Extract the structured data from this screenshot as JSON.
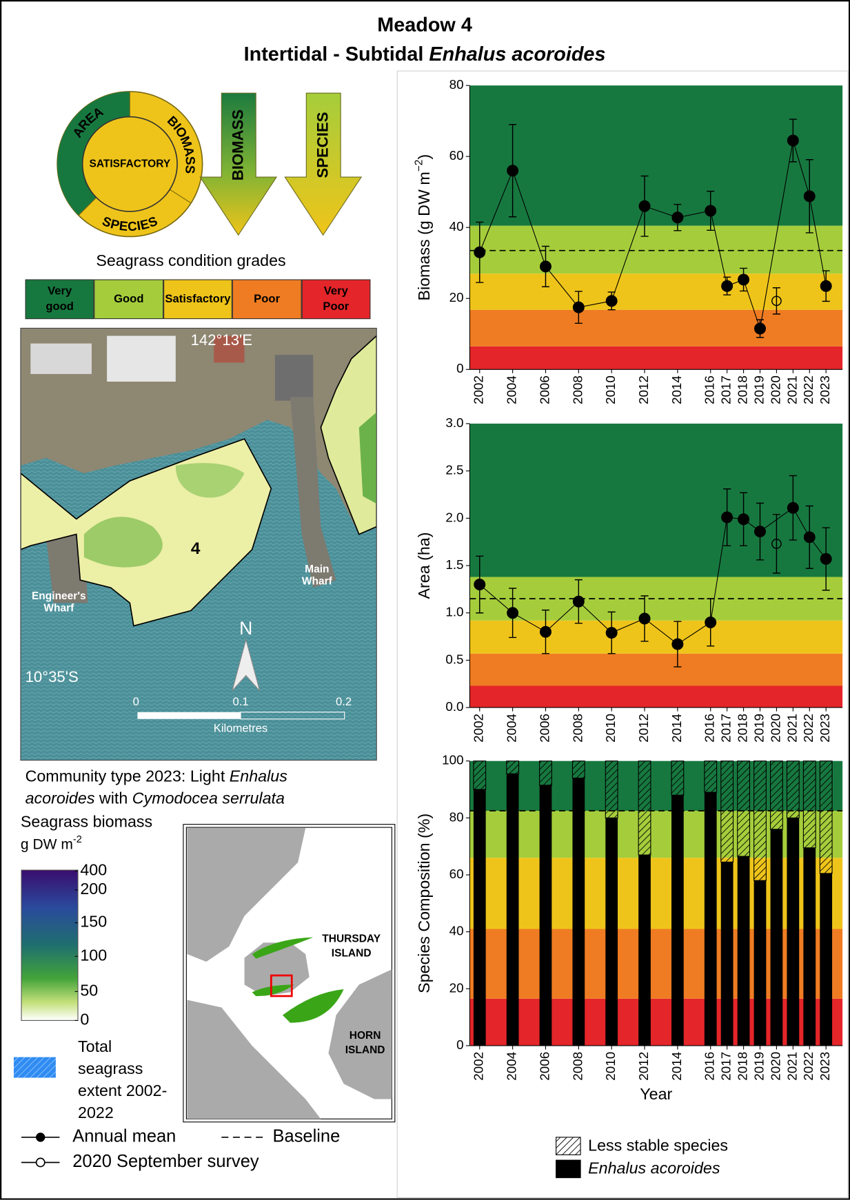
{
  "header": {
    "title": "Meadow 4",
    "subtitle": "Intertidal - Subtidal ",
    "subtitle_species": "Enhalus acoroides"
  },
  "report_card": {
    "center": "SATISFACTORY",
    "ring": [
      "AREA",
      "BIOMASS",
      "SPECIES"
    ],
    "arrows": [
      "BIOMASS",
      "SPECIES"
    ]
  },
  "grades": {
    "title": "Seagrass condition grades",
    "items": [
      {
        "label": "Very good",
        "color": "#17783f"
      },
      {
        "label": "Good",
        "color": "#a5cd3b"
      },
      {
        "label": "Satisfactory",
        "color": "#efc41a"
      },
      {
        "label": "Poor",
        "color": "#ef7c22"
      },
      {
        "label": "Very Poor",
        "color": "#e42529"
      }
    ]
  },
  "map": {
    "longitude": "142°13'E",
    "latitude": "10°35'S",
    "meadow": "4",
    "places": [
      "Engineer's Wharf",
      "Main Wharf"
    ],
    "north": "N",
    "scale": [
      "0",
      "0.1",
      "0.2"
    ],
    "scale_unit": "Kilometres"
  },
  "community": {
    "text": "Community type 2023: Light ",
    "species1": "Enhalus acoroides",
    "joiner": " with ",
    "species2": "Cymodocea serrulata"
  },
  "biomass_legend": {
    "title": "Seagrass biomass",
    "unit": "g DW m",
    "unit_sup": "-2",
    "ticks": [
      "400",
      "200",
      "150",
      "100",
      "50",
      "0"
    ],
    "extent": "Total seagrass extent 2002-2022"
  },
  "symbol_legend": {
    "annual_mean": "Annual mean",
    "baseline": "Baseline",
    "september": "2020 September survey"
  },
  "inset": {
    "labels": [
      "THURSDAY ISLAND",
      "HORN ISLAND"
    ]
  },
  "chart_data": [
    {
      "type": "line",
      "ylabel": "Biomass (g DW m",
      "ylabel_sup": "−2",
      "ylabel_end": ")",
      "xlim": [
        2001.4,
        2024.0
      ],
      "xticks": [
        2002,
        2004,
        2006,
        2008,
        2010,
        2012,
        2014,
        2016,
        2017,
        2018,
        2019,
        2020,
        2021,
        2022,
        2023
      ],
      "ylim": [
        0,
        80
      ],
      "yticks": [
        0,
        20,
        40,
        60,
        80
      ],
      "baseline": 33.5,
      "bands": [
        {
          "from": 0,
          "to": 6.5,
          "color": "#e42529"
        },
        {
          "from": 6.5,
          "to": 16.8,
          "color": "#ef7c22"
        },
        {
          "from": 16.8,
          "to": 27,
          "color": "#efc41a"
        },
        {
          "from": 27,
          "to": 40.5,
          "color": "#a5cd3b"
        },
        {
          "from": 40.5,
          "to": 80,
          "color": "#17783f"
        }
      ],
      "series": [
        {
          "color": "#000000",
          "marker": "filled",
          "line": true,
          "x": [
            2002,
            2004,
            2006,
            2008,
            2010,
            2012,
            2014,
            2016,
            2017,
            2018,
            2019,
            2021,
            2022,
            2023
          ],
          "values": [
            33,
            56,
            29,
            17.5,
            19.3,
            46,
            42.8,
            44.7,
            23.5,
            25.3,
            11.5,
            64.5,
            48.8,
            23.5
          ],
          "errors": [
            8.5,
            13,
            5.7,
            4.5,
            2.5,
            8.5,
            3.7,
            5.5,
            2.5,
            3.2,
            2.5,
            6,
            10.3,
            4.3
          ]
        },
        {
          "color": "#000000",
          "marker": "open",
          "line": false,
          "x": [
            2020
          ],
          "values": [
            19.3
          ],
          "errors": [
            3.7
          ]
        }
      ]
    },
    {
      "type": "line",
      "ylabel": "Area (ha)",
      "xlim": [
        2001.4,
        2024.0
      ],
      "xticks": [
        2002,
        2004,
        2006,
        2008,
        2010,
        2012,
        2014,
        2016,
        2017,
        2018,
        2019,
        2020,
        2021,
        2022,
        2023
      ],
      "ylim": [
        0,
        3
      ],
      "yticks": [
        {
          "value": 0,
          "label": "0.0"
        },
        0.5,
        {
          "value": 1,
          "label": "1.0"
        },
        1.5,
        {
          "value": 2,
          "label": "2.0"
        },
        2.5,
        {
          "value": 3,
          "label": "3.0"
        }
      ],
      "baseline": 1.15,
      "bands": [
        {
          "from": 0,
          "to": 0.23,
          "color": "#e42529"
        },
        {
          "from": 0.23,
          "to": 0.57,
          "color": "#ef7c22"
        },
        {
          "from": 0.57,
          "to": 0.92,
          "color": "#efc41a"
        },
        {
          "from": 0.92,
          "to": 1.38,
          "color": "#a5cd3b"
        },
        {
          "from": 1.38,
          "to": 3,
          "color": "#17783f"
        }
      ],
      "series": [
        {
          "color": "#000000",
          "marker": "filled",
          "line": true,
          "x": [
            2002,
            2004,
            2006,
            2008,
            2010,
            2012,
            2014,
            2016,
            2017,
            2018,
            2019,
            2021,
            2022,
            2023
          ],
          "values": [
            1.3,
            1.0,
            0.8,
            1.12,
            0.79,
            0.94,
            0.67,
            0.9,
            2.01,
            1.99,
            1.86,
            2.11,
            1.8,
            1.57
          ],
          "errors": [
            0.3,
            0.26,
            0.23,
            0.23,
            0.22,
            0.24,
            0.24,
            0.25,
            0.3,
            0.28,
            0.3,
            0.34,
            0.33,
            0.33
          ]
        },
        {
          "color": "#000000",
          "marker": "open",
          "line": false,
          "x": [
            2020
          ],
          "values": [
            1.73
          ],
          "errors": [
            0.31
          ]
        }
      ]
    },
    {
      "type": "bar",
      "stacked": true,
      "ylabel": "Species Composition (%)",
      "xlabel": "Year",
      "xlim": [
        2001.4,
        2024.0
      ],
      "xticks": [
        2002,
        2004,
        2006,
        2008,
        2010,
        2012,
        2014,
        2016,
        2017,
        2018,
        2019,
        2020,
        2021,
        2022,
        2023
      ],
      "x": [
        2002,
        2004,
        2006,
        2008,
        2010,
        2012,
        2014,
        2016,
        2017,
        2018,
        2019,
        2020,
        2021,
        2022,
        2023
      ],
      "ylim": [
        0,
        100
      ],
      "yticks": [
        0,
        20,
        40,
        60,
        80,
        100
      ],
      "baseline": 82.5,
      "bands": [
        {
          "from": 0,
          "to": 16.5,
          "color": "#e42529"
        },
        {
          "from": 16.5,
          "to": 41,
          "color": "#ef7c22"
        },
        {
          "from": 41,
          "to": 66,
          "color": "#efc41a"
        },
        {
          "from": 66,
          "to": 82.5,
          "color": "#a5cd3b"
        },
        {
          "from": 82.5,
          "to": 100,
          "color": "#17783f"
        }
      ],
      "series": [
        {
          "name": "Enhalus acoroides",
          "color": "#000000",
          "italic": true,
          "hatch": false,
          "values": [
            90,
            95.5,
            91.5,
            94,
            80,
            67,
            88,
            89,
            64.5,
            66.5,
            58,
            76,
            80,
            69.5,
            60.5
          ]
        },
        {
          "name": "Less stable species",
          "color": "#000000",
          "italic": false,
          "hatch": true,
          "values": [
            10,
            4.5,
            8.5,
            6,
            20,
            33,
            12,
            11,
            35.5,
            33.5,
            42,
            24,
            20,
            30.5,
            39.5
          ]
        }
      ]
    }
  ]
}
